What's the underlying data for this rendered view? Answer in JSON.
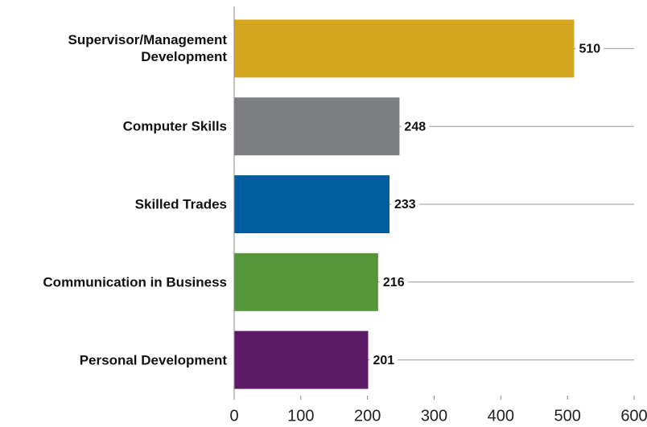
{
  "chart_data": {
    "type": "barh",
    "categories": [
      "Supervisor/Management Development",
      "Computer Skills",
      "Skilled Trades",
      "Communication in Business",
      "Personal Development"
    ],
    "values": [
      510,
      248,
      233,
      216,
      201
    ],
    "colors": [
      "#d4a51e",
      "#7d7f82",
      "#005e9e",
      "#55963a",
      "#5c1a67"
    ],
    "xlim": [
      0,
      600
    ],
    "xticks": [
      0,
      100,
      200,
      300,
      400,
      500,
      600
    ],
    "grid": true
  }
}
